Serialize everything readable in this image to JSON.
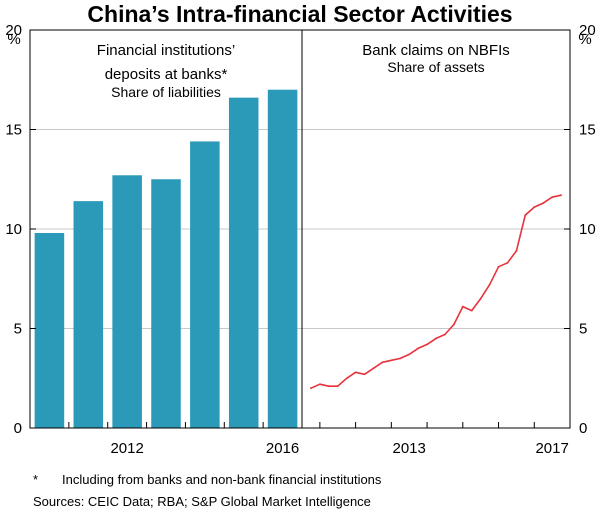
{
  "title": "China’s Intra-financial Sector Activities",
  "unit_label": "%",
  "yaxis": {
    "min": 0,
    "max": 20,
    "ticks": [
      "0",
      "5",
      "10",
      "15",
      "20"
    ]
  },
  "colors": {
    "bar": "#2a9ab8",
    "line": "#e8323c",
    "grid": "#c8c8c8",
    "frame": "#000000"
  },
  "chart_data": [
    {
      "type": "bar",
      "title": "Financial institutions’ deposits at banks*",
      "subtitle": "Share of liabilities",
      "x": [
        2010,
        2011,
        2012,
        2013,
        2014,
        2015,
        2016
      ],
      "values": [
        9.8,
        11.4,
        12.7,
        12.5,
        14.4,
        16.6,
        17.0
      ],
      "x_ticks": [
        "2012",
        "2016"
      ],
      "ylim": [
        0,
        20
      ],
      "grid": true
    },
    {
      "type": "line",
      "title": "Bank claims on NBFIs",
      "subtitle": "Share of assets",
      "x": [
        2010.75,
        2011.0,
        2011.25,
        2011.5,
        2011.75,
        2012.0,
        2012.25,
        2012.5,
        2012.75,
        2013.0,
        2013.25,
        2013.5,
        2013.75,
        2014.0,
        2014.25,
        2014.5,
        2014.75,
        2015.0,
        2015.25,
        2015.5,
        2015.75,
        2016.0,
        2016.25,
        2016.5,
        2016.75,
        2017.0,
        2017.25,
        2017.5,
        2017.75
      ],
      "values": [
        2.0,
        2.2,
        2.1,
        2.1,
        2.5,
        2.8,
        2.7,
        3.0,
        3.3,
        3.4,
        3.5,
        3.7,
        4.0,
        4.2,
        4.5,
        4.7,
        5.2,
        6.1,
        5.9,
        6.5,
        7.2,
        8.1,
        8.3,
        8.9,
        10.7,
        11.1,
        11.3,
        11.6,
        11.7
      ],
      "x_ticks": [
        "2013",
        "2017"
      ],
      "ylim": [
        0,
        20
      ],
      "grid": true
    }
  ],
  "footnote": "Including from banks and non-bank financial institutions",
  "footnote_marker": "*",
  "sources": "Sources: CEIC Data; RBA; S&P Global Market Intelligence"
}
